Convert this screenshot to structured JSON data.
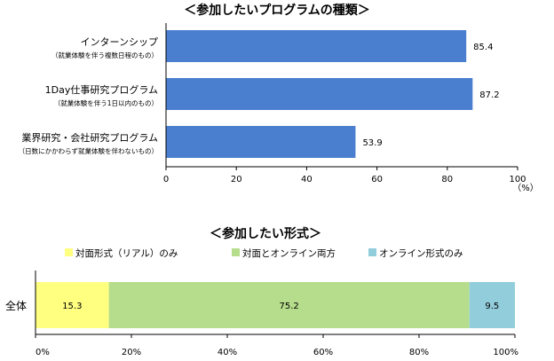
{
  "chart_data": [
    {
      "type": "bar",
      "orientation": "horizontal",
      "title": "＜参加したいプログラムの種類＞",
      "categories": [
        {
          "label": "インターンシップ",
          "sublabel": "（就業体験を伴う複数日程のもの）"
        },
        {
          "label": "1Day仕事研究プログラム",
          "sublabel": "（就業体験を伴う1日以内のもの）"
        },
        {
          "label": "業界研究・会社研究プログラム",
          "sublabel": "（日数にかかわらず就業体験を伴わないもの）"
        }
      ],
      "values": [
        85.4,
        87.2,
        53.9
      ],
      "value_labels": [
        "85.4",
        "87.2",
        "53.9"
      ],
      "xlim": [
        0,
        100
      ],
      "xticks": [
        "0",
        "20",
        "40",
        "60",
        "80",
        "100"
      ],
      "unit": "（%）",
      "bar_color": "#4a7fd0"
    },
    {
      "type": "bar",
      "orientation": "horizontal",
      "stacked": true,
      "percent": true,
      "title": "＜参加したい形式＞",
      "categories": [
        "全体"
      ],
      "series": [
        {
          "name": "対面形式（リアル）のみ",
          "values": [
            15.3
          ],
          "value_labels": [
            "15.3"
          ],
          "color": "#ffff80"
        },
        {
          "name": "対面とオンライン両方",
          "values": [
            75.2
          ],
          "value_labels": [
            "75.2"
          ],
          "color": "#b6dd8c"
        },
        {
          "name": "オンライン形式のみ",
          "values": [
            9.5
          ],
          "value_labels": [
            "9.5"
          ],
          "color": "#92cddc"
        }
      ],
      "xlim": [
        0,
        100
      ],
      "xticks": [
        "0%",
        "20%",
        "40%",
        "60%",
        "80%",
        "100%"
      ],
      "legend": "top"
    }
  ]
}
